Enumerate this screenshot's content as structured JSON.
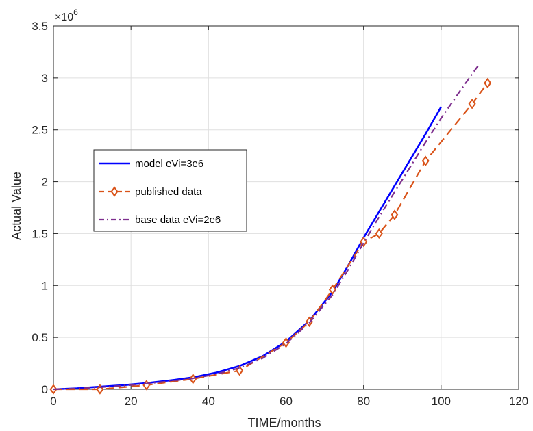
{
  "chart_data": {
    "type": "line",
    "title": "",
    "xlabel": "TIME/months",
    "ylabel": "Actual Value",
    "xlim": [
      0,
      120
    ],
    "ylim": [
      0,
      3500000
    ],
    "xticks": [
      0,
      20,
      40,
      60,
      80,
      100,
      120
    ],
    "xtick_labels": [
      "0",
      "20",
      "40",
      "60",
      "80",
      "100",
      "120"
    ],
    "yticks": [
      0,
      500000,
      1000000,
      1500000,
      2000000,
      2500000,
      3000000,
      3500000
    ],
    "ytick_labels": [
      "0",
      "0.5",
      "1",
      "1.5",
      "2",
      "2.5",
      "3",
      "3.5"
    ],
    "y_exponent_label": "×10",
    "y_exponent_power": "6",
    "grid": true,
    "legend_position": "center-left",
    "series": [
      {
        "name": "model  eVi=3e6",
        "style": "solid",
        "color": "#0000ff",
        "x": [
          0,
          6,
          12,
          18,
          24,
          30,
          36,
          42,
          48,
          54,
          60,
          66,
          72,
          76,
          80,
          84,
          88,
          92,
          96,
          100
        ],
        "y": [
          0,
          10000,
          25000,
          40000,
          60000,
          85000,
          115000,
          160000,
          225000,
          320000,
          460000,
          660000,
          940000,
          1190000,
          1460000,
          1710000,
          1960000,
          2210000,
          2460000,
          2720000
        ]
      },
      {
        "name": "published data",
        "style": "dashed",
        "marker": "diamond",
        "color": "#d95319",
        "x": [
          0,
          12,
          24,
          36,
          48,
          60,
          66,
          72,
          80,
          84,
          88,
          96,
          108,
          112
        ],
        "y": [
          0,
          0,
          40000,
          100000,
          180000,
          450000,
          650000,
          960000,
          1420000,
          1500000,
          1680000,
          2200000,
          2750000,
          2950000
        ]
      },
      {
        "name": "base data eVi=2e6",
        "style": "dashdot",
        "color": "#7e2f8e",
        "x": [
          0,
          6,
          12,
          18,
          24,
          30,
          36,
          42,
          48,
          54,
          60,
          66,
          72,
          76,
          80,
          84,
          88,
          92,
          96,
          100,
          105,
          110
        ],
        "y": [
          0,
          8000,
          20000,
          35000,
          55000,
          78000,
          105000,
          145000,
          205000,
          300000,
          440000,
          640000,
          910000,
          1150000,
          1410000,
          1660000,
          1900000,
          2140000,
          2380000,
          2610000,
          2880000,
          3140000
        ]
      }
    ]
  }
}
